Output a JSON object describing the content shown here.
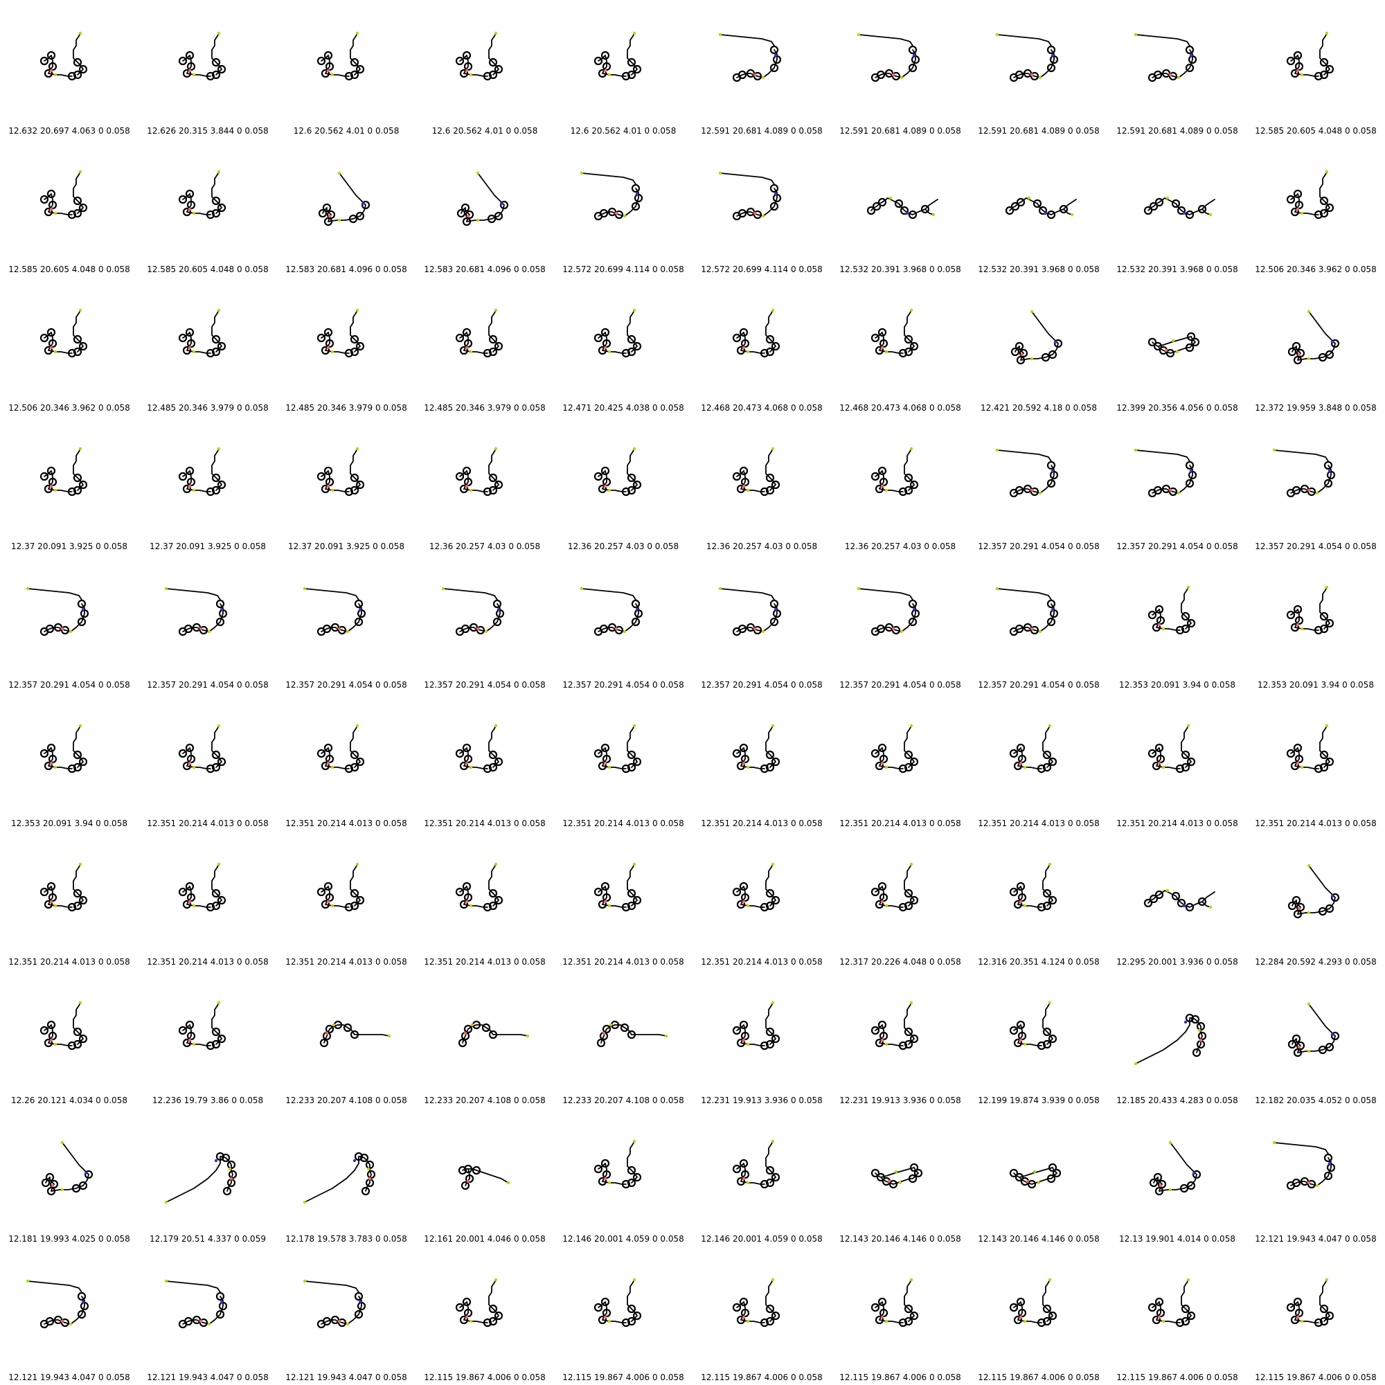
{
  "grid": {
    "columns": 10,
    "cells": [
      {
        "caption": "12.632 20.697 4.063 0 0.058",
        "shape": "a"
      },
      {
        "caption": "12.626 20.315 3.844 0 0.058",
        "shape": "a"
      },
      {
        "caption": "12.6 20.562 4.01 0 0.058",
        "shape": "a"
      },
      {
        "caption": "12.6 20.562 4.01 0 0.058",
        "shape": "a"
      },
      {
        "caption": "12.6 20.562 4.01 0 0.058",
        "shape": "a"
      },
      {
        "caption": "12.591 20.681 4.089 0 0.058",
        "shape": "b"
      },
      {
        "caption": "12.591 20.681 4.089 0 0.058",
        "shape": "b"
      },
      {
        "caption": "12.591 20.681 4.089 0 0.058",
        "shape": "b"
      },
      {
        "caption": "12.591 20.681 4.089 0 0.058",
        "shape": "b"
      },
      {
        "caption": "12.585 20.605 4.048 0 0.058",
        "shape": "a"
      },
      {
        "caption": "12.585 20.605 4.048 0 0.058",
        "shape": "a"
      },
      {
        "caption": "12.585 20.605 4.048 0 0.058",
        "shape": "a"
      },
      {
        "caption": "12.583 20.681 4.096 0 0.058",
        "shape": "c"
      },
      {
        "caption": "12.583 20.681 4.096 0 0.058",
        "shape": "c"
      },
      {
        "caption": "12.572 20.699 4.114 0 0.058",
        "shape": "b"
      },
      {
        "caption": "12.572 20.699 4.114 0 0.058",
        "shape": "b"
      },
      {
        "caption": "12.532 20.391 3.968 0 0.058",
        "shape": "d"
      },
      {
        "caption": "12.532 20.391 3.968 0 0.058",
        "shape": "d"
      },
      {
        "caption": "12.532 20.391 3.968 0 0.058",
        "shape": "d"
      },
      {
        "caption": "12.506 20.346 3.962 0 0.058",
        "shape": "a"
      },
      {
        "caption": "12.506 20.346 3.962 0 0.058",
        "shape": "a"
      },
      {
        "caption": "12.485 20.346 3.979 0 0.058",
        "shape": "a"
      },
      {
        "caption": "12.485 20.346 3.979 0 0.058",
        "shape": "a"
      },
      {
        "caption": "12.485 20.346 3.979 0 0.058",
        "shape": "a"
      },
      {
        "caption": "12.471 20.425 4.038 0 0.058",
        "shape": "a"
      },
      {
        "caption": "12.468 20.473 4.068 0 0.058",
        "shape": "a"
      },
      {
        "caption": "12.468 20.473 4.068 0 0.058",
        "shape": "a"
      },
      {
        "caption": "12.421 20.592 4.18 0 0.058",
        "shape": "c"
      },
      {
        "caption": "12.399 20.356 4.056 0 0.058",
        "shape": "f"
      },
      {
        "caption": "12.372 19.959 3.848 0 0.058",
        "shape": "c"
      },
      {
        "caption": "12.37 20.091 3.925 0 0.058",
        "shape": "a"
      },
      {
        "caption": "12.37 20.091 3.925 0 0.058",
        "shape": "a"
      },
      {
        "caption": "12.37 20.091 3.925 0 0.058",
        "shape": "a"
      },
      {
        "caption": "12.36 20.257 4.03 0 0.058",
        "shape": "a"
      },
      {
        "caption": "12.36 20.257 4.03 0 0.058",
        "shape": "a"
      },
      {
        "caption": "12.36 20.257 4.03 0 0.058",
        "shape": "a"
      },
      {
        "caption": "12.36 20.257 4.03 0 0.058",
        "shape": "a"
      },
      {
        "caption": "12.357 20.291 4.054 0 0.058",
        "shape": "b"
      },
      {
        "caption": "12.357 20.291 4.054 0 0.058",
        "shape": "b"
      },
      {
        "caption": "12.357 20.291 4.054 0 0.058",
        "shape": "b"
      },
      {
        "caption": "12.357 20.291 4.054 0 0.058",
        "shape": "b"
      },
      {
        "caption": "12.357 20.291 4.054 0 0.058",
        "shape": "b"
      },
      {
        "caption": "12.357 20.291 4.054 0 0.058",
        "shape": "b"
      },
      {
        "caption": "12.357 20.291 4.054 0 0.058",
        "shape": "b"
      },
      {
        "caption": "12.357 20.291 4.054 0 0.058",
        "shape": "b"
      },
      {
        "caption": "12.357 20.291 4.054 0 0.058",
        "shape": "b"
      },
      {
        "caption": "12.357 20.291 4.054 0 0.058",
        "shape": "b"
      },
      {
        "caption": "12.357 20.291 4.054 0 0.058",
        "shape": "b"
      },
      {
        "caption": "12.353 20.091 3.94 0 0.058",
        "shape": "a"
      },
      {
        "caption": "12.353 20.091 3.94 0 0.058",
        "shape": "a"
      },
      {
        "caption": "12.353 20.091 3.94 0 0.058",
        "shape": "a"
      },
      {
        "caption": "12.351 20.214 4.013 0 0.058",
        "shape": "a"
      },
      {
        "caption": "12.351 20.214 4.013 0 0.058",
        "shape": "a"
      },
      {
        "caption": "12.351 20.214 4.013 0 0.058",
        "shape": "a"
      },
      {
        "caption": "12.351 20.214 4.013 0 0.058",
        "shape": "a"
      },
      {
        "caption": "12.351 20.214 4.013 0 0.058",
        "shape": "a"
      },
      {
        "caption": "12.351 20.214 4.013 0 0.058",
        "shape": "a"
      },
      {
        "caption": "12.351 20.214 4.013 0 0.058",
        "shape": "a"
      },
      {
        "caption": "12.351 20.214 4.013 0 0.058",
        "shape": "a"
      },
      {
        "caption": "12.351 20.214 4.013 0 0.058",
        "shape": "a"
      },
      {
        "caption": "12.351 20.214 4.013 0 0.058",
        "shape": "a"
      },
      {
        "caption": "12.351 20.214 4.013 0 0.058",
        "shape": "a"
      },
      {
        "caption": "12.351 20.214 4.013 0 0.058",
        "shape": "a"
      },
      {
        "caption": "12.351 20.214 4.013 0 0.058",
        "shape": "a"
      },
      {
        "caption": "12.351 20.214 4.013 0 0.058",
        "shape": "a"
      },
      {
        "caption": "12.351 20.214 4.013 0 0.058",
        "shape": "a"
      },
      {
        "caption": "12.317 20.226 4.048 0 0.058",
        "shape": "a"
      },
      {
        "caption": "12.316 20.351 4.124 0 0.058",
        "shape": "a"
      },
      {
        "caption": "12.295 20.001 3.936 0 0.058",
        "shape": "d"
      },
      {
        "caption": "12.284 20.592 4.293 0 0.058",
        "shape": "c"
      },
      {
        "caption": "12.26 20.121 4.034 0 0.058",
        "shape": "a"
      },
      {
        "caption": "12.236 19.79 3.86 0 0.058",
        "shape": "a"
      },
      {
        "caption": "12.233 20.207 4.108 0 0.058",
        "shape": "e"
      },
      {
        "caption": "12.233 20.207 4.108 0 0.058",
        "shape": "e"
      },
      {
        "caption": "12.233 20.207 4.108 0 0.058",
        "shape": "e"
      },
      {
        "caption": "12.231 19.913 3.936 0 0.058",
        "shape": "a"
      },
      {
        "caption": "12.231 19.913 3.936 0 0.058",
        "shape": "a"
      },
      {
        "caption": "12.199 19.874 3.939 0 0.058",
        "shape": "a"
      },
      {
        "caption": "12.185 20.433 4.283 0 0.058",
        "shape": "g"
      },
      {
        "caption": "12.182 20.035 4.052 0 0.058",
        "shape": "c"
      },
      {
        "caption": "12.181 19.993 4.025 0 0.058",
        "shape": "c"
      },
      {
        "caption": "12.179 20.51 4.337 0 0.059",
        "shape": "g"
      },
      {
        "caption": "12.178 19.578 3.783 0 0.058",
        "shape": "g"
      },
      {
        "caption": "12.161 20.001 4.046 0 0.058",
        "shape": "h"
      },
      {
        "caption": "12.146 20.001 4.059 0 0.058",
        "shape": "a"
      },
      {
        "caption": "12.146 20.001 4.059 0 0.058",
        "shape": "a"
      },
      {
        "caption": "12.143 20.146 4.146 0 0.058",
        "shape": "f"
      },
      {
        "caption": "12.143 20.146 4.146 0 0.058",
        "shape": "f"
      },
      {
        "caption": "12.13 19.901 4.014 0 0.058",
        "shape": "c"
      },
      {
        "caption": "12.121 19.943 4.047 0 0.058",
        "shape": "b"
      },
      {
        "caption": "12.121 19.943 4.047 0 0.058",
        "shape": "b"
      },
      {
        "caption": "12.121 19.943 4.047 0 0.058",
        "shape": "b"
      },
      {
        "caption": "12.121 19.943 4.047 0 0.058",
        "shape": "b"
      },
      {
        "caption": "12.115 19.867 4.006 0 0.058",
        "shape": "a"
      },
      {
        "caption": "12.115 19.867 4.006 0 0.058",
        "shape": "a"
      },
      {
        "caption": "12.115 19.867 4.006 0 0.058",
        "shape": "a"
      },
      {
        "caption": "12.115 19.867 4.006 0 0.058",
        "shape": "a"
      },
      {
        "caption": "12.115 19.867 4.006 0 0.058",
        "shape": "a"
      },
      {
        "caption": "12.115 19.867 4.006 0 0.058",
        "shape": "a"
      },
      {
        "caption": "12.115 19.867 4.006 0 0.058",
        "shape": "a"
      }
    ]
  },
  "atom_colors": {
    "bond": "#000000",
    "sulfur": "#cccc00",
    "fluorine": "#99e600",
    "oxygen": "#ff6666",
    "nitrogen": "#3333cc"
  }
}
